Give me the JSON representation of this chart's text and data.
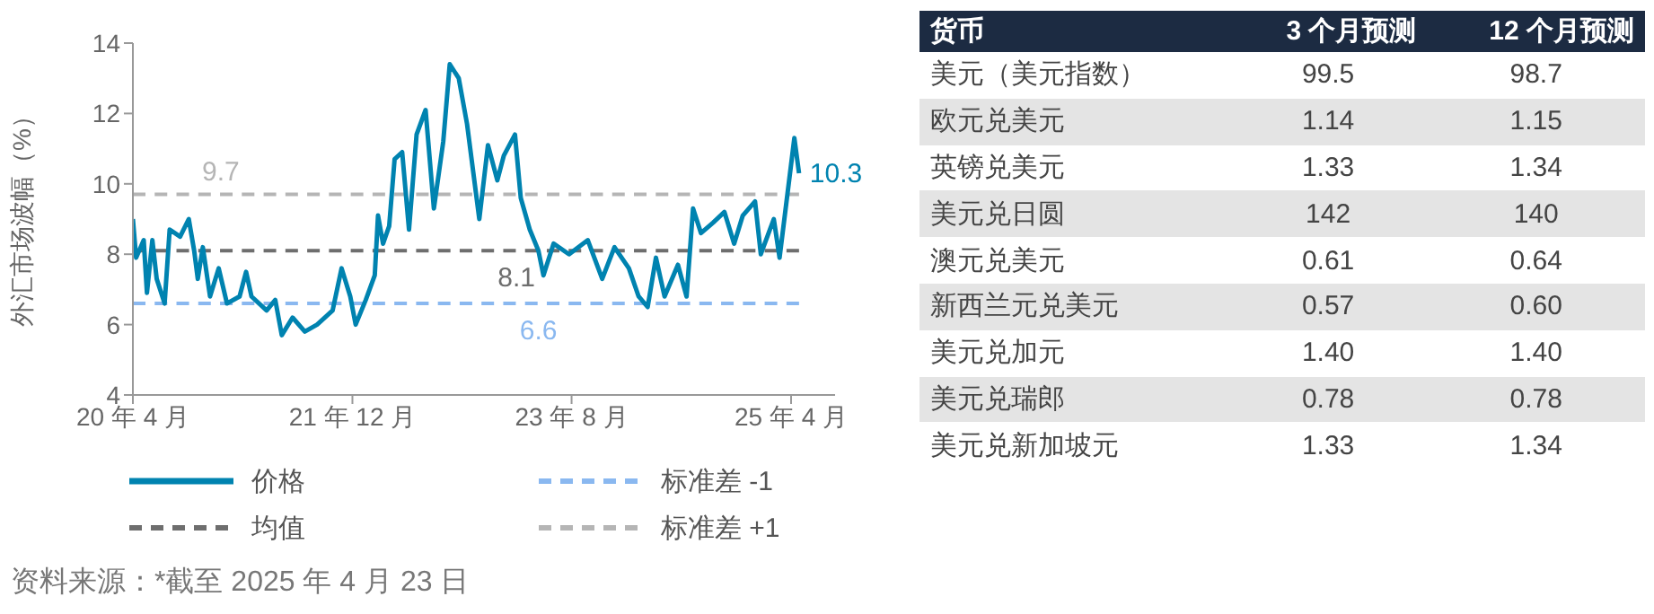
{
  "chart_data": [
    {
      "type": "line",
      "ylabel": "外汇市场波幅（%）",
      "xlim": [
        "2020-04-01",
        "2025-08-01"
      ],
      "xticks": [
        {
          "value": "2020-04-01",
          "label": "20 年 4 月"
        },
        {
          "value": "2021-12-01",
          "label": "21 年 12 月"
        },
        {
          "value": "2023-08-01",
          "label": "23 年 8 月"
        },
        {
          "value": "2025-04-01",
          "label": "25 年 4 月"
        }
      ],
      "ylim": [
        4,
        14
      ],
      "yticks": [
        4,
        6,
        8,
        10,
        12,
        14
      ],
      "legend": "bottom",
      "marker": "none",
      "series": [
        {
          "name": "价格",
          "color": "#0083b0",
          "line_style": "solid",
          "x": [
            "2020-04-01",
            "2020-04-10",
            "2020-05-01",
            "2020-05-10",
            "2020-05-25",
            "2020-06-06",
            "2020-06-28",
            "2020-07-12",
            "2020-08-10",
            "2020-09-03",
            "2020-09-18",
            "2020-09-28",
            "2020-10-12",
            "2020-11-01",
            "2020-11-25",
            "2020-12-18",
            "2021-01-22",
            "2021-02-09",
            "2021-02-24",
            "2021-04-07",
            "2021-05-01",
            "2021-05-19",
            "2021-06-18",
            "2021-07-22",
            "2021-08-25",
            "2021-10-07",
            "2021-11-01",
            "2021-11-25",
            "2021-12-10",
            "2022-01-07",
            "2022-02-01",
            "2022-02-10",
            "2022-02-24",
            "2022-03-13",
            "2022-03-28",
            "2022-04-18",
            "2022-05-07",
            "2022-05-28",
            "2022-06-22",
            "2022-07-15",
            "2022-08-10",
            "2022-08-28",
            "2022-09-22",
            "2022-10-15",
            "2022-11-18",
            "2022-12-12",
            "2023-01-07",
            "2023-01-25",
            "2023-02-25",
            "2023-03-13",
            "2023-04-07",
            "2023-05-01",
            "2023-05-15",
            "2023-06-12",
            "2023-07-25",
            "2023-09-15",
            "2023-10-25",
            "2023-11-28",
            "2024-01-07",
            "2024-02-03",
            "2024-02-28",
            "2024-03-22",
            "2024-04-15",
            "2024-05-22",
            "2024-06-15",
            "2024-07-03",
            "2024-07-25",
            "2024-08-28",
            "2024-09-28",
            "2024-10-25",
            "2024-11-18",
            "2024-12-22",
            "2025-01-07",
            "2025-02-12",
            "2025-02-28",
            "2025-04-10",
            "2025-04-23"
          ],
          "values": [
            9.0,
            7.9,
            8.4,
            6.9,
            8.4,
            7.3,
            6.6,
            8.7,
            8.5,
            9.0,
            8.1,
            7.3,
            8.2,
            6.8,
            7.6,
            6.6,
            6.8,
            7.5,
            6.8,
            6.4,
            6.7,
            5.7,
            6.2,
            5.8,
            6.0,
            6.4,
            7.6,
            6.8,
            6.0,
            6.7,
            7.4,
            9.1,
            8.3,
            8.8,
            10.7,
            10.9,
            8.7,
            11.4,
            12.1,
            9.3,
            11.2,
            13.4,
            13.0,
            11.7,
            9.0,
            11.1,
            10.1,
            10.8,
            11.4,
            9.6,
            8.7,
            8.1,
            7.4,
            8.3,
            8.0,
            8.4,
            7.3,
            8.2,
            7.6,
            6.8,
            6.5,
            7.9,
            6.8,
            7.7,
            6.8,
            9.3,
            8.6,
            8.9,
            9.2,
            8.3,
            9.1,
            9.5,
            8.0,
            9.0,
            7.9,
            11.3,
            10.3
          ]
        },
        {
          "name": "标准差 -1",
          "color": "#8ab8f0",
          "line_style": "dashed",
          "x": [
            "2020-04-01",
            "2025-04-23"
          ],
          "values": [
            6.6,
            6.6
          ]
        },
        {
          "name": "均值",
          "color": "#6e6e6e",
          "line_style": "dashed",
          "x": [
            "2020-04-01",
            "2025-04-23"
          ],
          "values": [
            8.1,
            8.1
          ]
        },
        {
          "name": "标准差 +1",
          "color": "#b5b5b5",
          "line_style": "dashed",
          "x": [
            "2020-04-01",
            "2025-04-23"
          ],
          "values": [
            9.7,
            9.7
          ]
        }
      ],
      "annotations": [
        {
          "text": "9.7",
          "x": "2020-12-01",
          "y": 9.7
        },
        {
          "text": "8.1",
          "x": "2023-03-01",
          "y": 8.1
        },
        {
          "text": "6.6",
          "x": "2023-05-01",
          "y": 6.6
        },
        {
          "text": "10.3",
          "x": "2025-04-23",
          "y": 10.3
        },
        "资料来源：*截至 2025 年 4 月 23 日"
      ]
    },
    {
      "type": "other",
      "ylabel": "货币",
      "categories": [
        "3 个月预测",
        "12 个月预测"
      ],
      "y_categories": [
        "美元（美元指数）",
        "欧元兑美元",
        "英镑兑美元",
        "美元兑日圆",
        "澳元兑美元",
        "新西兰元兑美元",
        "美元兑加元",
        "美元兑瑞郎",
        "美元兑新加坡元"
      ],
      "cell_labels": [
        [
          "99.5",
          "98.7"
        ],
        [
          "1.14",
          "1.15"
        ],
        [
          "1.33",
          "1.34"
        ],
        [
          "142",
          "140"
        ],
        [
          "0.61",
          "0.64"
        ],
        [
          "0.57",
          "0.60"
        ],
        [
          "1.40",
          "1.40"
        ],
        [
          "0.78",
          "0.78"
        ],
        [
          "1.33",
          "1.34"
        ]
      ]
    }
  ]
}
